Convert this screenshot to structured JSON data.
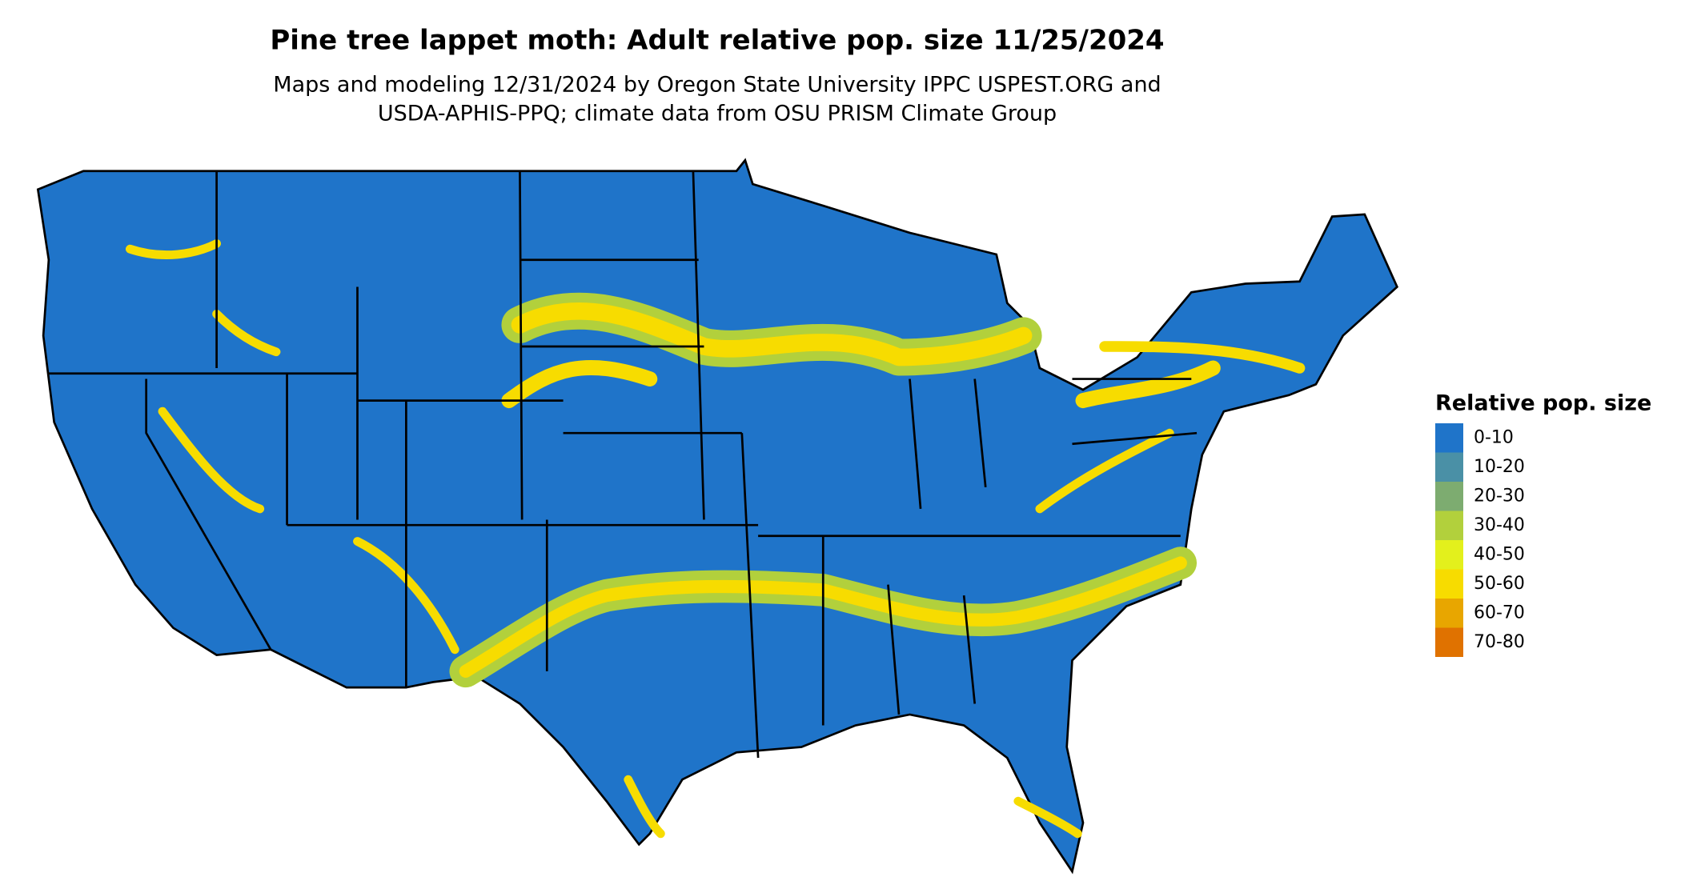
{
  "header": {
    "title": "Pine tree lappet moth: Adult relative pop. size 11/25/2024",
    "subtitle_lines": [
      "Maps and modeling 12/31/2024 by Oregon State University IPPC USPEST.ORG and",
      "USDA-APHIS-PPQ; climate data from OSU PRISM Climate Group"
    ]
  },
  "legend": {
    "title": "Relative pop. size",
    "items": [
      {
        "label": "0-10",
        "color": "#1f74c9"
      },
      {
        "label": "10-20",
        "color": "#4a90a6"
      },
      {
        "label": "20-30",
        "color": "#7dac70"
      },
      {
        "label": "30-40",
        "color": "#b2d03c"
      },
      {
        "label": "40-50",
        "color": "#e3f01c"
      },
      {
        "label": "50-60",
        "color": "#f7dc00"
      },
      {
        "label": "60-70",
        "color": "#e8a600"
      },
      {
        "label": "70-80",
        "color": "#e07200"
      }
    ]
  }
}
